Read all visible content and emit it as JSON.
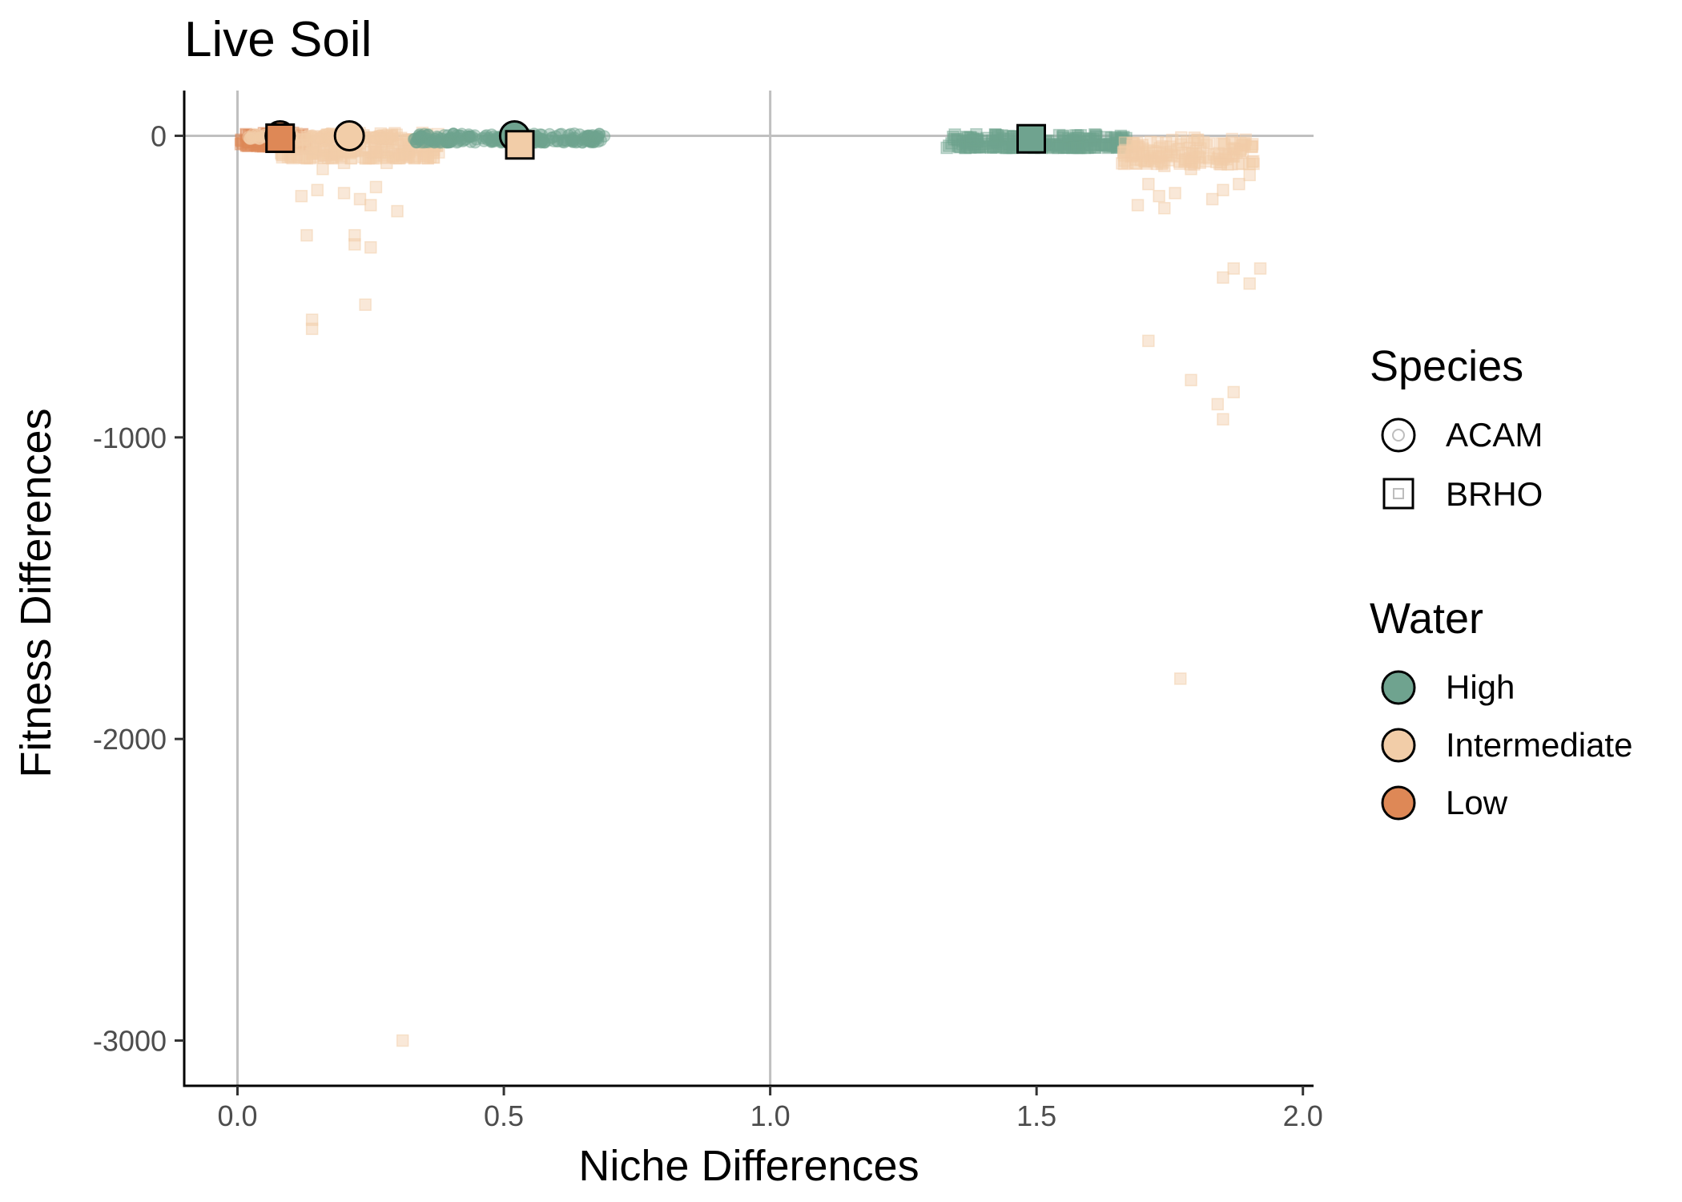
{
  "chart_data": {
    "type": "scatter",
    "title": "Live Soil",
    "xlabel": "Niche Differences",
    "ylabel": "Fitness Differences",
    "xlim": [
      -0.1,
      2.02
    ],
    "ylim": [
      -3150,
      150
    ],
    "x_ticks": [
      "0.0",
      "0.5",
      "1.0",
      "1.5",
      "2.0"
    ],
    "y_ticks": [
      "0",
      "-1000",
      "-2000",
      "-3000"
    ],
    "reference_lines": {
      "x": [
        0,
        1
      ],
      "y": [
        0
      ]
    },
    "grid": false,
    "legend_position": "right",
    "colors": {
      "High": "#6fa38f",
      "Intermediate": "#f2cda8",
      "Low": "#de8856"
    },
    "legend": {
      "shape_title": "Species",
      "shape_items": [
        {
          "label": "ACAM",
          "shape": "circle"
        },
        {
          "label": "BRHO",
          "shape": "square"
        }
      ],
      "color_title": "Water",
      "color_items": [
        {
          "label": "High",
          "color": "#6fa38f"
        },
        {
          "label": "Intermediate",
          "color": "#f2cda8"
        },
        {
          "label": "Low",
          "color": "#de8856"
        }
      ]
    },
    "mean_points": [
      {
        "species": "ACAM",
        "water": "Low",
        "x": 0.08,
        "y": 0
      },
      {
        "species": "BRHO",
        "water": "Low",
        "x": 0.08,
        "y": -8
      },
      {
        "species": "ACAM",
        "water": "Intermediate",
        "x": 0.21,
        "y": 0
      },
      {
        "species": "ACAM",
        "water": "High",
        "x": 0.52,
        "y": 0
      },
      {
        "species": "BRHO",
        "water": "Intermediate",
        "x": 0.53,
        "y": -30
      },
      {
        "species": "BRHO",
        "water": "High",
        "x": 1.49,
        "y": -10
      }
    ],
    "bootstrap_points": [
      {
        "species": "BRHO",
        "water": "Intermediate",
        "x": 0.12,
        "y": -200
      },
      {
        "species": "BRHO",
        "water": "Intermediate",
        "x": 0.15,
        "y": -180
      },
      {
        "species": "BRHO",
        "water": "Intermediate",
        "x": 0.2,
        "y": -190
      },
      {
        "species": "BRHO",
        "water": "Intermediate",
        "x": 0.23,
        "y": -210
      },
      {
        "species": "BRHO",
        "water": "Intermediate",
        "x": 0.25,
        "y": -230
      },
      {
        "species": "BRHO",
        "water": "Intermediate",
        "x": 0.26,
        "y": -170
      },
      {
        "species": "BRHO",
        "water": "Intermediate",
        "x": 0.3,
        "y": -250
      },
      {
        "species": "BRHO",
        "water": "Intermediate",
        "x": 0.13,
        "y": -330
      },
      {
        "species": "BRHO",
        "water": "Intermediate",
        "x": 0.22,
        "y": -330
      },
      {
        "species": "BRHO",
        "water": "Intermediate",
        "x": 0.22,
        "y": -360
      },
      {
        "species": "BRHO",
        "water": "Intermediate",
        "x": 0.25,
        "y": -370
      },
      {
        "species": "BRHO",
        "water": "Intermediate",
        "x": 0.24,
        "y": -560
      },
      {
        "species": "BRHO",
        "water": "Intermediate",
        "x": 0.14,
        "y": -610
      },
      {
        "species": "BRHO",
        "water": "Intermediate",
        "x": 0.14,
        "y": -640
      },
      {
        "species": "BRHO",
        "water": "Intermediate",
        "x": 0.31,
        "y": -3000
      },
      {
        "species": "BRHO",
        "water": "Intermediate",
        "x": 0.16,
        "y": -110
      },
      {
        "species": "BRHO",
        "water": "Intermediate",
        "x": 0.2,
        "y": -90
      },
      {
        "species": "BRHO",
        "water": "Intermediate",
        "x": 0.28,
        "y": -90
      },
      {
        "species": "BRHO",
        "water": "Intermediate",
        "x": 1.69,
        "y": -230
      },
      {
        "species": "BRHO",
        "water": "Intermediate",
        "x": 1.74,
        "y": -240
      },
      {
        "species": "BRHO",
        "water": "Intermediate",
        "x": 1.73,
        "y": -200
      },
      {
        "species": "BRHO",
        "water": "Intermediate",
        "x": 1.71,
        "y": -160
      },
      {
        "species": "BRHO",
        "water": "Intermediate",
        "x": 1.76,
        "y": -190
      },
      {
        "species": "BRHO",
        "water": "Intermediate",
        "x": 1.79,
        "y": -110
      },
      {
        "species": "BRHO",
        "water": "Intermediate",
        "x": 1.74,
        "y": -100
      },
      {
        "species": "BRHO",
        "water": "Intermediate",
        "x": 1.83,
        "y": -210
      },
      {
        "species": "BRHO",
        "water": "Intermediate",
        "x": 1.85,
        "y": -180
      },
      {
        "species": "BRHO",
        "water": "Intermediate",
        "x": 1.88,
        "y": -160
      },
      {
        "species": "BRHO",
        "water": "Intermediate",
        "x": 1.9,
        "y": -130
      },
      {
        "species": "BRHO",
        "water": "Intermediate",
        "x": 1.85,
        "y": -470
      },
      {
        "species": "BRHO",
        "water": "Intermediate",
        "x": 1.87,
        "y": -440
      },
      {
        "species": "BRHO",
        "water": "Intermediate",
        "x": 1.9,
        "y": -490
      },
      {
        "species": "BRHO",
        "water": "Intermediate",
        "x": 1.92,
        "y": -440
      },
      {
        "species": "BRHO",
        "water": "Intermediate",
        "x": 1.71,
        "y": -680
      },
      {
        "species": "BRHO",
        "water": "Intermediate",
        "x": 1.79,
        "y": -810
      },
      {
        "species": "BRHO",
        "water": "Intermediate",
        "x": 1.84,
        "y": -890
      },
      {
        "species": "BRHO",
        "water": "Intermediate",
        "x": 1.87,
        "y": -850
      },
      {
        "species": "BRHO",
        "water": "Intermediate",
        "x": 1.85,
        "y": -940
      },
      {
        "species": "BRHO",
        "water": "Intermediate",
        "x": 1.77,
        "y": -1800
      }
    ]
  }
}
